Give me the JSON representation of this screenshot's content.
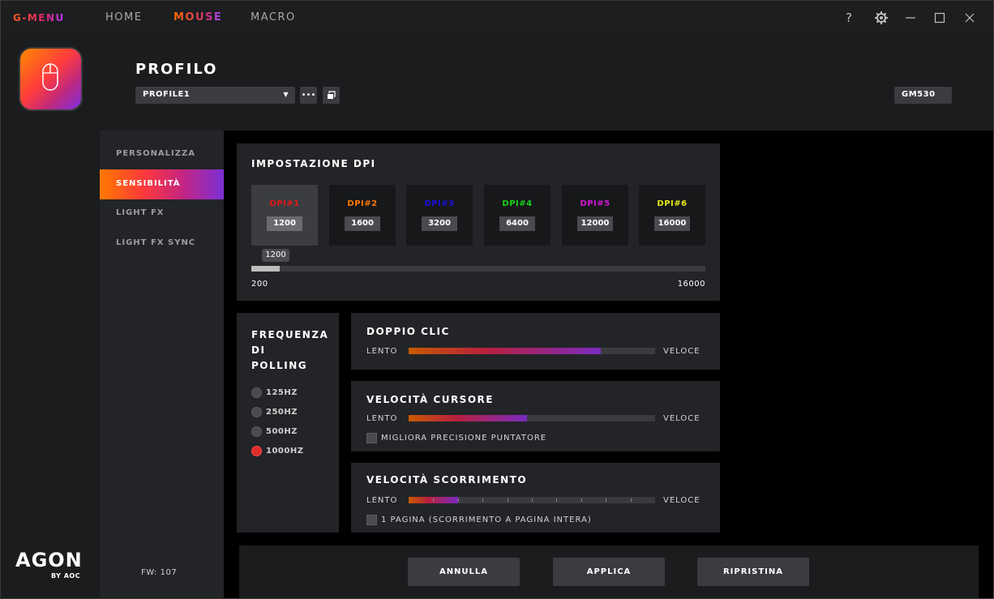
{
  "app": {
    "brand": "G-MENU"
  },
  "topnav": [
    {
      "label": "HOME"
    },
    {
      "label": "MOUSE"
    },
    {
      "label": "MACRO"
    }
  ],
  "window_controls": {
    "help": "?"
  },
  "header": {
    "title": "PROFILO",
    "profile_selected": "PROFILE1",
    "model": "GM530"
  },
  "sidebar": {
    "items": [
      {
        "label": "PERSONALIZZA"
      },
      {
        "label": "SENSIBILITÀ"
      },
      {
        "label": "LIGHT FX"
      },
      {
        "label": "LIGHT FX SYNC"
      }
    ],
    "firmware": "FW: 107"
  },
  "logo": {
    "brand": "AGON",
    "sub": "BY AOC"
  },
  "dpi": {
    "title": "IMPOSTAZIONE DPI",
    "cards": [
      {
        "label": "DPI#1",
        "value": "1200",
        "color": "#e01818"
      },
      {
        "label": "DPI#2",
        "value": "1600",
        "color": "#ff7a00"
      },
      {
        "label": "DPI#3",
        "value": "3200",
        "color": "#1a10d8"
      },
      {
        "label": "DPI#4",
        "value": "6400",
        "color": "#19d419"
      },
      {
        "label": "DPI#5",
        "value": "12000",
        "color": "#d214d8"
      },
      {
        "label": "DPI#6",
        "value": "16000",
        "color": "#e8e814"
      }
    ],
    "slider": {
      "tooltip": "1200",
      "min": "200",
      "max": "16000",
      "value": 1200
    }
  },
  "polling": {
    "title_lines": [
      "FREQUENZA",
      "DI",
      "POLLING"
    ],
    "options": [
      {
        "label": "125HZ",
        "selected": false
      },
      {
        "label": "250HZ",
        "selected": false
      },
      {
        "label": "500HZ",
        "selected": false
      },
      {
        "label": "1000HZ",
        "selected": true
      }
    ]
  },
  "double_click": {
    "title": "DOPPIO CLIC",
    "left": "LENTO",
    "right": "VELOCE",
    "level": 0.78
  },
  "cursor_speed": {
    "title": "VELOCITÀ CURSORE",
    "left": "LENTO",
    "right": "VELOCE",
    "level": 0.48,
    "checkbox": "MIGLIORA PRECISIONE PUNTATORE"
  },
  "scroll_speed": {
    "title": "VELOCITÀ SCORRIMENTO",
    "left": "LENTO",
    "right": "VELOCE",
    "level": 0.2,
    "checkbox": "1 PAGINA (SCORRIMENTO A PAGINA INTERA)"
  },
  "footer": {
    "cancel": "ANNULLA",
    "apply": "APPLICA",
    "reset": "RIPRISTINA"
  }
}
